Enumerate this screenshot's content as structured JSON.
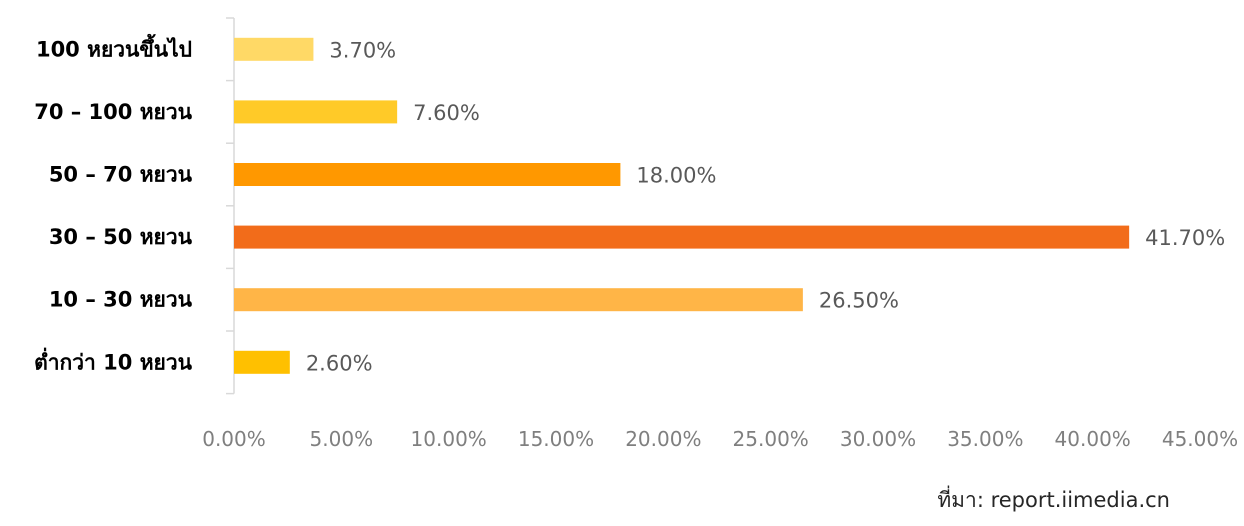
{
  "chart_data": {
    "type": "bar",
    "orientation": "horizontal",
    "categories": [
      "100 หยวนขึ้นไป",
      "70 – 100 หยวน",
      "50 – 70 หยวน",
      "30 – 50 หยวน",
      "10 – 30 หยวน",
      "ต่ำกว่า 10 หยวน"
    ],
    "values": [
      3.7,
      7.6,
      18.0,
      41.7,
      26.5,
      2.6
    ],
    "value_labels": [
      "3.70%",
      "7.60%",
      "18.00%",
      "41.70%",
      "26.50%",
      "2.60%"
    ],
    "bar_colors": [
      "#FFD966",
      "#FFCA28",
      "#FF9800",
      "#F26C1A",
      "#FFB547",
      "#FFC000"
    ],
    "xlim": [
      0,
      45
    ],
    "x_ticks": [
      0,
      5,
      10,
      15,
      20,
      25,
      30,
      35,
      40,
      45
    ],
    "x_tick_labels": [
      "0.00%",
      "5.00%",
      "10.00%",
      "15.00%",
      "20.00%",
      "25.00%",
      "30.00%",
      "35.00%",
      "40.00%",
      "45.00%"
    ],
    "grid": false,
    "legend": "none"
  },
  "source": "ที่มา: report.iimedia.cn"
}
